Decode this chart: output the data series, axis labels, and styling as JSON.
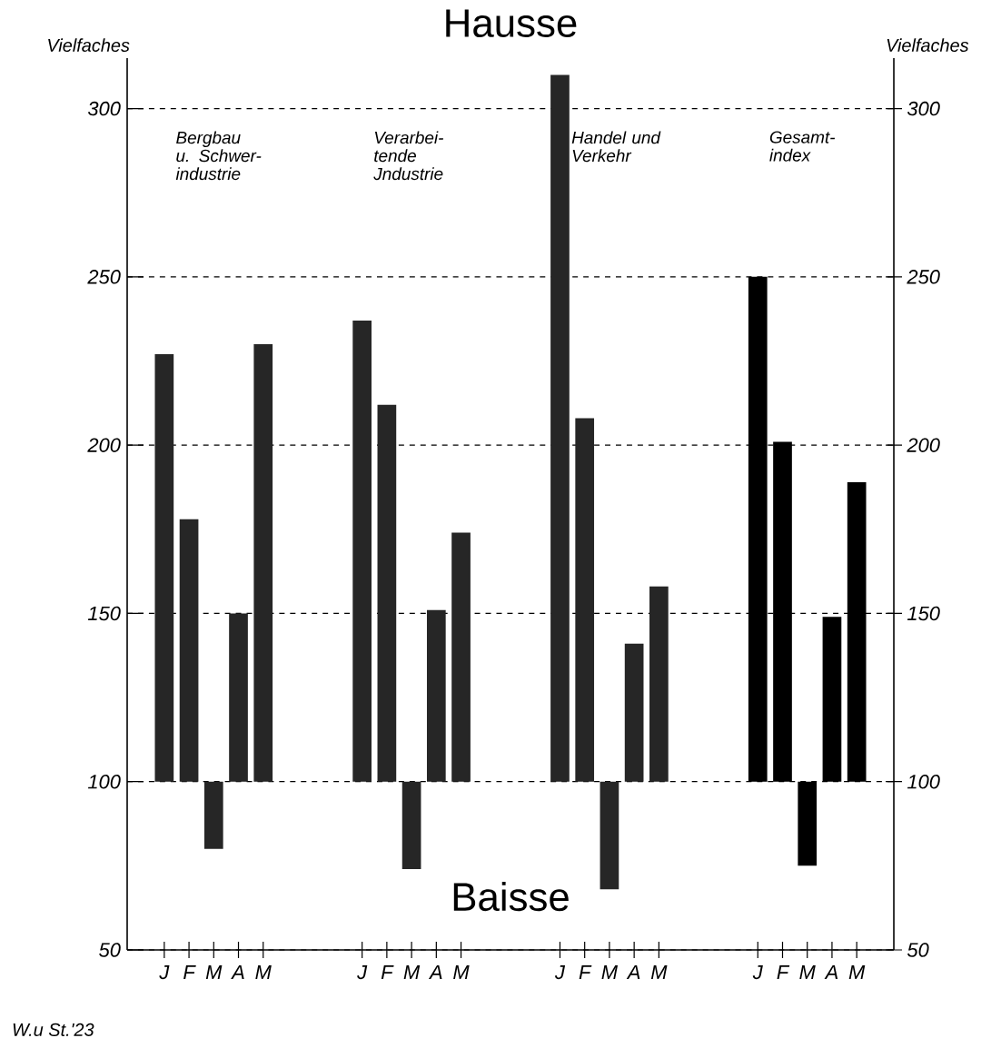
{
  "chart_data": {
    "type": "bar",
    "title": "Hausse",
    "ylabel": "Vielfaches",
    "y2label": "Vielfaches",
    "categories": [
      "J",
      "F",
      "M",
      "A",
      "M",
      null,
      null,
      null,
      "J",
      "F",
      "M",
      "A",
      "M",
      null,
      null,
      null,
      "J",
      "F",
      "M",
      "A",
      "M",
      null,
      null,
      null,
      "J",
      "F",
      "M",
      "A",
      "M"
    ],
    "base": [
      100,
      100,
      100,
      100,
      100,
      null,
      null,
      null,
      100,
      100,
      100,
      100,
      100,
      null,
      null,
      null,
      100,
      100,
      100,
      100,
      100,
      null,
      null,
      null,
      100,
      100,
      100,
      100,
      100
    ],
    "values": [
      127,
      78,
      -20,
      50,
      130,
      null,
      null,
      null,
      137,
      112,
      -26,
      51,
      74,
      null,
      null,
      null,
      210,
      108,
      -32,
      41,
      58,
      null,
      null,
      null,
      150,
      101,
      -25,
      49,
      89
    ],
    "colors": [
      "#262626",
      "#262626",
      "#262626",
      "#262626",
      "#262626",
      null,
      null,
      null,
      "#262626",
      "#262626",
      "#262626",
      "#262626",
      "#262626",
      null,
      null,
      null,
      "#262626",
      "#262626",
      "#262626",
      "#262626",
      "#262626",
      null,
      null,
      null,
      "#000000",
      "#000000",
      "#000000",
      "#000000",
      "#000000"
    ],
    "ylim": [
      50,
      315
    ],
    "yticks": [
      50,
      100,
      150,
      200,
      250,
      300
    ],
    "y2lim": [
      50,
      315
    ],
    "y2ticks": [
      50,
      100,
      150,
      200,
      250,
      300
    ],
    "grid": "y",
    "annotations": [
      "Bergbau u. Schwer-industrie",
      "Verarbei-tende Jndustrie",
      "Handel und Verkehr",
      "Gesamt-index",
      "Baisse",
      "W.u St.'23"
    ]
  }
}
